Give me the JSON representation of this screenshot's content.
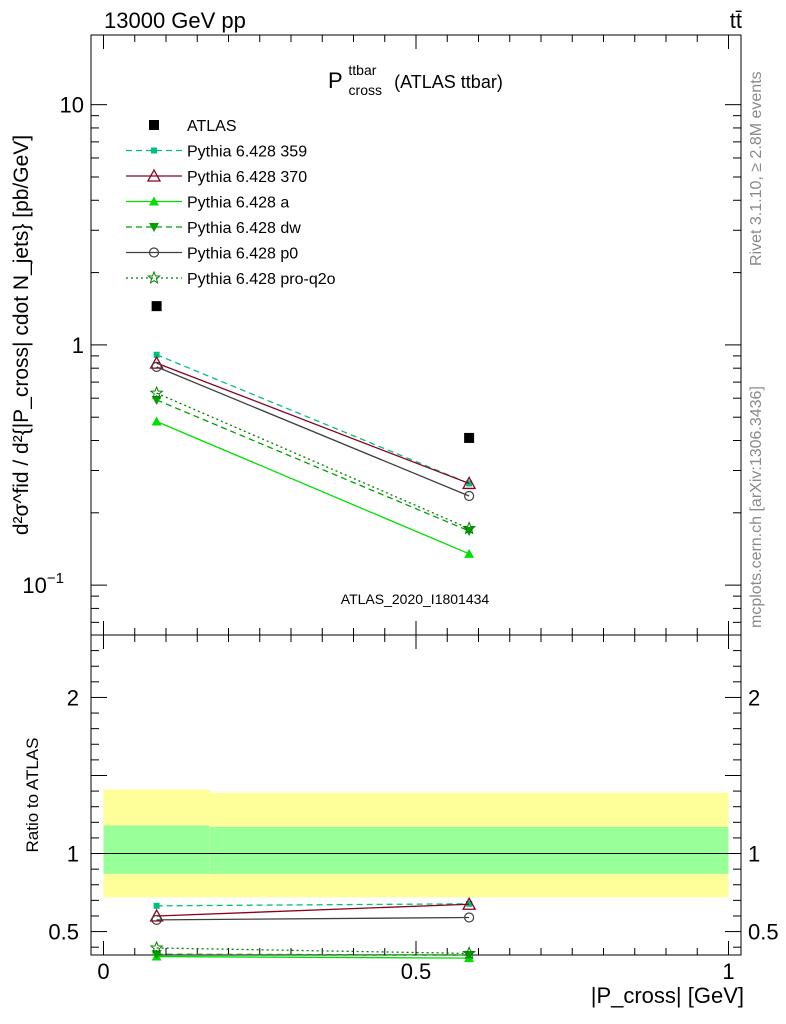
{
  "header": {
    "left": "13000 GeV pp",
    "right": "tt̄"
  },
  "side_labels": {
    "rivet": "Rivet 3.1.10, ≥ 2.8M events",
    "mcplots": "mcplots.cern.ch [arXiv:1306.3436]"
  },
  "watermark": "ATLAS_2020_I1801434",
  "chart_data": {
    "type": "scatter",
    "title": "P_cross^ttbar (ATLAS ttbar)",
    "title_main": "P",
    "title_sup": "ttbar",
    "title_sub": "cross",
    "title_rest": "(ATLAS ttbar)",
    "ylabel": "d²σ^fid / d²{|P_cross| cdot N_jets} [pb/GeV]",
    "ratio_ylabel": "Ratio to ATLAS",
    "xlabel": "|P_cross| [GeV]",
    "xlim": [
      -0.02,
      1.02
    ],
    "ylim": [
      0.062,
      19.5
    ],
    "yscale": "log",
    "ratio_ylim": [
      0.35,
      2.4
    ],
    "x_ticks": [
      "0",
      "0.5",
      "1"
    ],
    "y_ticks": [
      "10^-1",
      "1",
      "10"
    ],
    "ratio_ticks": [
      "0.5",
      "1",
      "2"
    ],
    "legend_position": "top-left",
    "data": {
      "name": "ATLAS",
      "x": [
        0.085,
        0.585
      ],
      "y": [
        1.45,
        0.41
      ],
      "color": "#000000"
    },
    "ratio_bands": [
      {
        "x": [
          0.0,
          0.17
        ],
        "inner": [
          0.87,
          1.18
        ],
        "outer": [
          0.72,
          1.41
        ]
      },
      {
        "x": [
          0.17,
          1.0
        ],
        "inner": [
          0.87,
          1.17
        ],
        "outer": [
          0.72,
          1.39
        ]
      }
    ],
    "series": [
      {
        "name": "Pythia 6.428 359",
        "color": "#00c080",
        "dash": "6,4",
        "marker": "square-small",
        "x": [
          0.085,
          0.585
        ],
        "y": [
          0.91,
          0.265
        ],
        "ratio": [
          0.665,
          0.678
        ]
      },
      {
        "name": "Pythia 6.428 370",
        "color": "#8b0020",
        "dash": "",
        "marker": "triangle-open",
        "x": [
          0.085,
          0.585
        ],
        "y": [
          0.84,
          0.265
        ],
        "ratio": [
          0.6,
          0.675
        ]
      },
      {
        "name": "Pythia 6.428 a",
        "color": "#00e000",
        "dash": "",
        "marker": "triangle-filled",
        "x": [
          0.085,
          0.585
        ],
        "y": [
          0.48,
          0.135
        ],
        "ratio": [
          0.34,
          0.33
        ]
      },
      {
        "name": "Pythia 6.428 dw",
        "color": "#00a000",
        "dash": "6,4",
        "marker": "triangle-down",
        "x": [
          0.085,
          0.585
        ],
        "y": [
          0.59,
          0.168
        ],
        "ratio": [
          0.355,
          0.35
        ]
      },
      {
        "name": "Pythia 6.428 p0",
        "color": "#404040",
        "dash": "",
        "marker": "circle-open",
        "x": [
          0.085,
          0.585
        ],
        "y": [
          0.81,
          0.235
        ],
        "ratio": [
          0.575,
          0.59
        ]
      },
      {
        "name": "Pythia 6.428 pro-q2o",
        "color": "#008000",
        "dash": "2,3",
        "marker": "star",
        "x": [
          0.085,
          0.585
        ],
        "y": [
          0.63,
          0.172
        ],
        "ratio": [
          0.395,
          0.36
        ]
      }
    ]
  }
}
